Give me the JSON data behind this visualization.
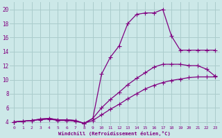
{
  "bg_color": "#cce8e8",
  "grid_color": "#aacccc",
  "line_color": "#800080",
  "marker_color": "#800080",
  "xlabel": "Windchill (Refroidissement éolien,°C)",
  "xlim": [
    -0.5,
    23.5
  ],
  "ylim": [
    3.5,
    21.0
  ],
  "yticks": [
    4,
    6,
    8,
    10,
    12,
    14,
    16,
    18,
    20
  ],
  "xticks": [
    0,
    1,
    2,
    3,
    4,
    5,
    6,
    7,
    8,
    9,
    10,
    11,
    12,
    13,
    14,
    15,
    16,
    17,
    18,
    19,
    20,
    21,
    22,
    23
  ],
  "line1_x": [
    0,
    1,
    2,
    3,
    4,
    5,
    6,
    7,
    8,
    9,
    10,
    11,
    12,
    13,
    14,
    15,
    16,
    17,
    18,
    19,
    20,
    21,
    22,
    23
  ],
  "line1_y": [
    4.0,
    4.1,
    4.2,
    4.4,
    4.5,
    4.3,
    4.3,
    4.2,
    3.8,
    4.5,
    10.8,
    13.2,
    14.8,
    18.0,
    19.3,
    19.5,
    19.5,
    20.0,
    16.2,
    14.2,
    14.2,
    14.2,
    14.2,
    14.2
  ],
  "line2_x": [
    0,
    1,
    2,
    3,
    4,
    5,
    6,
    7,
    8,
    9,
    10,
    11,
    12,
    13,
    14,
    15,
    16,
    17,
    18,
    19,
    20,
    21,
    22,
    23
  ],
  "line2_y": [
    4.0,
    4.1,
    4.2,
    4.4,
    4.5,
    4.3,
    4.3,
    4.2,
    3.8,
    4.5,
    6.0,
    7.2,
    8.2,
    9.3,
    10.2,
    11.0,
    11.8,
    12.2,
    12.2,
    12.2,
    12.0,
    12.0,
    11.5,
    10.5
  ],
  "line3_x": [
    0,
    1,
    2,
    3,
    4,
    5,
    6,
    7,
    8,
    9,
    10,
    11,
    12,
    13,
    14,
    15,
    16,
    17,
    18,
    19,
    20,
    21,
    22,
    23
  ],
  "line3_y": [
    4.0,
    4.1,
    4.2,
    4.3,
    4.4,
    4.2,
    4.2,
    4.1,
    3.8,
    4.2,
    5.0,
    5.8,
    6.5,
    7.3,
    8.0,
    8.7,
    9.2,
    9.6,
    9.9,
    10.1,
    10.3,
    10.4,
    10.4,
    10.4
  ]
}
